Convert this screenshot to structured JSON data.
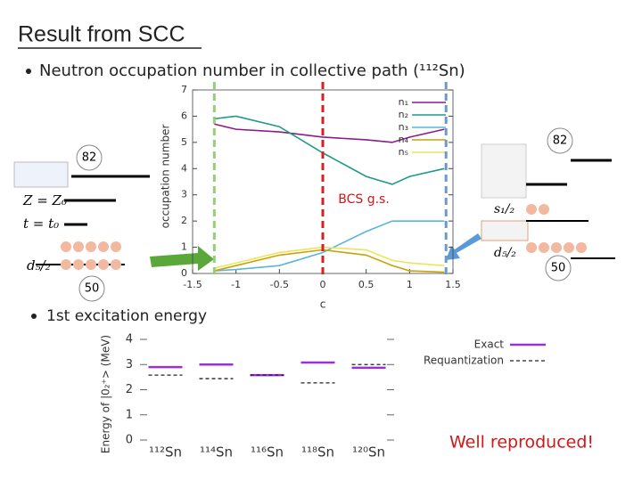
{
  "title": "Result from SCC",
  "bullets": [
    "Neutron occupation number in collective path (¹¹²Sn)",
    "1st excitation energy"
  ],
  "annotations": [
    "82",
    "82",
    "50",
    "50",
    "BCS g.s.",
    "Well reproduced!"
  ],
  "labels": [
    "Z = Z₀",
    "t = t₀",
    "d₅/₂",
    "s₁/₂",
    "d₅/₂"
  ],
  "chart_data": [
    {
      "type": "line",
      "ylabel": "occupation number",
      "xlabel": "c",
      "x": [
        -1.25,
        -1,
        -0.5,
        0,
        0.5,
        0.8,
        1,
        1.4
      ],
      "series": [
        {
          "name": "n₁",
          "color": "#8b1a8b",
          "values": [
            5.7,
            5.5,
            5.4,
            5.2,
            5.1,
            5.0,
            5.2,
            5.5
          ]
        },
        {
          "name": "n₂",
          "color": "#1f9a86",
          "values": [
            5.9,
            6.0,
            5.6,
            4.6,
            3.7,
            3.4,
            3.7,
            4.0
          ]
        },
        {
          "name": "n₃",
          "color": "#5ab4e0",
          "values": [
            0.1,
            0.15,
            0.3,
            0.8,
            1.6,
            2.0,
            2.0,
            2.0
          ]
        },
        {
          "name": "n₄",
          "color": "#c9a20a",
          "values": [
            0.1,
            0.3,
            0.7,
            0.9,
            0.7,
            0.3,
            0.1,
            0.05
          ]
        },
        {
          "name": "n₅",
          "color": "#efe35a",
          "values": [
            0.2,
            0.4,
            0.8,
            1.0,
            0.9,
            0.5,
            0.4,
            0.3
          ]
        }
      ],
      "vlines": [
        {
          "x": -1.25,
          "color": "#93cf78"
        },
        {
          "x": 0,
          "color": "#d42020"
        },
        {
          "x": 1.42,
          "color": "#6d9ac4"
        }
      ],
      "xlim": [
        -1.5,
        1.5
      ],
      "xticks": [
        -1.5,
        -1,
        -0.5,
        0,
        0.5,
        1,
        1.5
      ],
      "ylim": [
        0,
        7
      ],
      "yticks": [
        0,
        1,
        2,
        3,
        4,
        5,
        6,
        7
      ],
      "legend": "top-right"
    },
    {
      "type": "level",
      "ylabel": "Energy of |0₂⁺> (MeV)",
      "categories": [
        "¹¹²Sn",
        "¹¹⁴Sn",
        "¹¹⁶Sn",
        "¹¹⁸Sn",
        "¹²⁰Sn"
      ],
      "series": [
        {
          "name": "Exact",
          "color": "#9b2fd8",
          "values": [
            2.9,
            3.0,
            2.58,
            3.08,
            2.87
          ]
        },
        {
          "name": "Requantization",
          "color": "#222222",
          "values": [
            2.58,
            2.44,
            2.58,
            2.27,
            3.0
          ]
        }
      ],
      "ylim": [
        0,
        4
      ],
      "yticks": [
        0,
        1,
        2,
        3,
        4
      ],
      "legend": "right"
    }
  ]
}
